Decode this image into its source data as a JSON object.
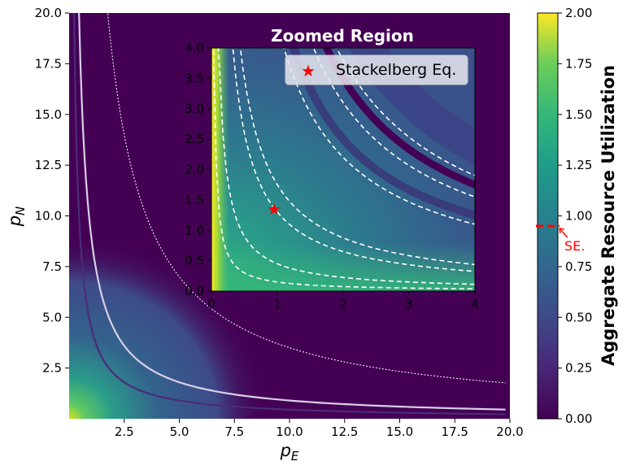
{
  "chart_data": [
    {
      "type": "heatmap",
      "xlabel_main": "p",
      "xlabel_sub": "E",
      "ylabel_main": "p",
      "ylabel_sub": "N",
      "xlim": [
        0,
        20
      ],
      "ylim": [
        0,
        20
      ],
      "xticks": [
        2.5,
        5.0,
        7.5,
        10.0,
        12.5,
        15.0,
        17.5,
        20.0
      ],
      "yticks": [
        2.5,
        5.0,
        7.5,
        10.0,
        12.5,
        15.0,
        17.5,
        20.0
      ],
      "contour_levels": [
        {
          "k": 4.5,
          "color": "#4b2b7a"
        },
        {
          "k": 9.0,
          "color": "#d8cfe8"
        },
        {
          "k": 35.0,
          "color": "#ffffff"
        }
      ],
      "colors": {
        "low": "#440154",
        "mid": "#31688e",
        "high": "#fde725"
      }
    },
    {
      "type": "heatmap",
      "title": "Zoomed Region",
      "xlim": [
        0,
        4
      ],
      "ylim": [
        0,
        4
      ],
      "xticks": [
        0,
        1,
        2,
        3,
        4
      ],
      "yticks": [
        0.0,
        0.5,
        1.0,
        1.5,
        2.0,
        2.5,
        3.0,
        3.5,
        4.0
      ],
      "contour_levels": [
        0.15,
        0.45,
        1.3,
        1.75,
        4.4,
        6.2,
        7.6
      ],
      "stackelberg_point": {
        "x": 0.95,
        "y": 1.35
      },
      "legend": {
        "label": "Stackelberg Eq.",
        "position": "top-right"
      }
    },
    {
      "type": "colorbar",
      "label": "Aggregate Resource Utilization",
      "range": [
        0.0,
        2.0
      ],
      "ticks": [
        0.0,
        0.25,
        0.5,
        0.75,
        1.0,
        1.25,
        1.5,
        1.75,
        2.0
      ],
      "marker": {
        "value": 0.95,
        "label": "SE.",
        "color": "#ff0000"
      }
    }
  ]
}
